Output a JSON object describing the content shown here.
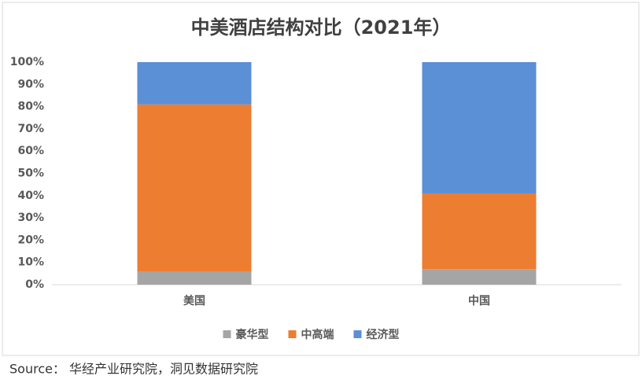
{
  "chart_data": {
    "type": "stacked_bar",
    "title": "中美酒店结构对比（2021年）",
    "categories": [
      "美国",
      "中国"
    ],
    "series": [
      {
        "name": "豪华型",
        "color": "#a5a5a5",
        "values": [
          6,
          7
        ]
      },
      {
        "name": "中高端",
        "color": "#ed7d31",
        "values": [
          75,
          34
        ]
      },
      {
        "name": "经济型",
        "color": "#5b8fd6",
        "values": [
          19,
          59
        ]
      }
    ],
    "ylim": [
      0,
      100
    ],
    "yticks": [
      {
        "value": 0,
        "label": "0%"
      },
      {
        "value": 10,
        "label": "10%"
      },
      {
        "value": 20,
        "label": "20%"
      },
      {
        "value": 30,
        "label": "30%"
      },
      {
        "value": 40,
        "label": "40%"
      },
      {
        "value": 50,
        "label": "50%"
      },
      {
        "value": 60,
        "label": "60%"
      },
      {
        "value": 70,
        "label": "70%"
      },
      {
        "value": 80,
        "label": "80%"
      },
      {
        "value": 90,
        "label": "90%"
      },
      {
        "value": 100,
        "label": "100%"
      }
    ],
    "legend": "bottom",
    "source": "Source： 华经产业研究院，洞见数据研究院"
  }
}
